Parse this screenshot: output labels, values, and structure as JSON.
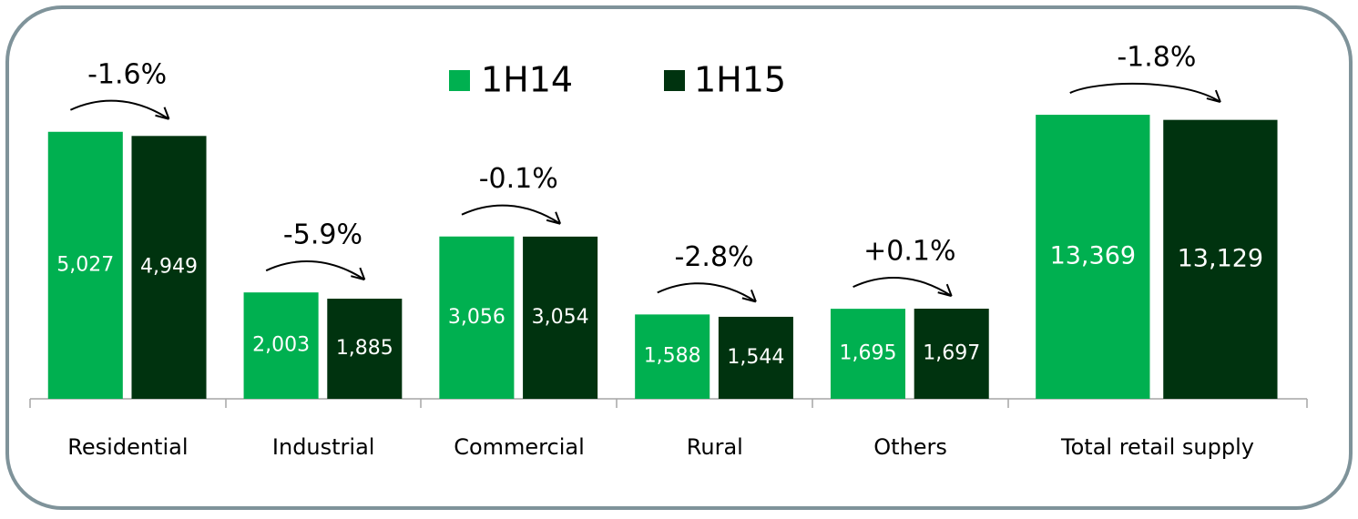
{
  "chart_data": [
    {
      "type": "bar",
      "categories": [
        "Residential",
        "Industrial",
        "Commercial",
        "Rural",
        "Others"
      ],
      "series": [
        {
          "name": "1H14",
          "color": "#00b050",
          "values": [
            5027,
            2003,
            3056,
            1588,
            1695
          ],
          "value_labels": [
            "5,027",
            "2,003",
            "3,056",
            "1,588",
            "1,695"
          ]
        },
        {
          "name": "1H15",
          "color": "#00330f",
          "values": [
            4949,
            1885,
            3054,
            1544,
            1697
          ],
          "value_labels": [
            "4,949",
            "1,885",
            "3,054",
            "1,544",
            "1,697"
          ]
        }
      ],
      "annotations": [
        "-1.6%",
        "-5.9%",
        "-0.1%",
        "-2.8%",
        "+0.1%"
      ],
      "ylim": [
        0,
        6000
      ]
    },
    {
      "type": "bar",
      "categories": [
        "Total retail supply"
      ],
      "series": [
        {
          "color": "#00b050",
          "values": [
            13369
          ],
          "value_labels": [
            "13,369"
          ]
        },
        {
          "color": "#00330f",
          "values": [
            13129
          ],
          "value_labels": [
            "13,129"
          ]
        }
      ],
      "annotations": [
        "-1.8%"
      ],
      "ylim": [
        0,
        15000
      ]
    }
  ]
}
